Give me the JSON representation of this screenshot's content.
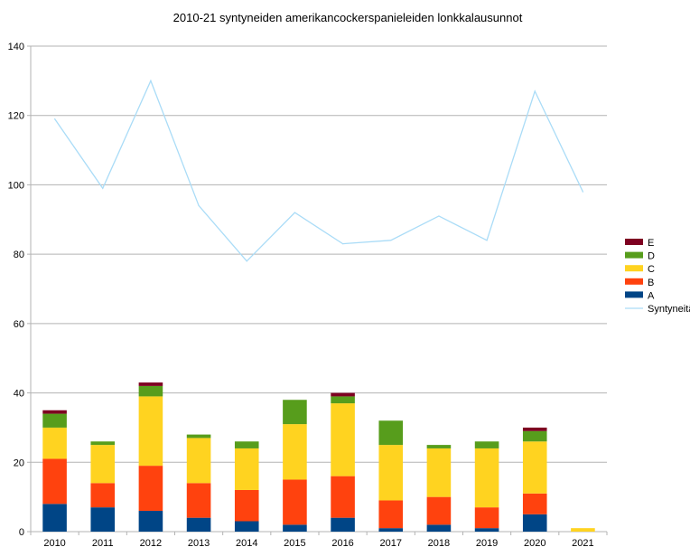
{
  "chart_data": {
    "type": "bar",
    "title": "2010-21 syntyneiden amerikancockerspanieleiden lonkkalausunnot",
    "xlabel": "",
    "ylabel": "",
    "ylim": [
      0,
      140
    ],
    "yticks": [
      0,
      20,
      40,
      60,
      80,
      100,
      120,
      140
    ],
    "grid": true,
    "legend_position": "right",
    "categories": [
      "2010",
      "2011",
      "2012",
      "2013",
      "2014",
      "2015",
      "2016",
      "2017",
      "2018",
      "2019",
      "2020",
      "2021"
    ],
    "stacked_series": [
      {
        "name": "A",
        "color": "#004586",
        "values": [
          8,
          7,
          6,
          4,
          3,
          2,
          4,
          1,
          2,
          1,
          5,
          0
        ]
      },
      {
        "name": "B",
        "color": "#ff420e",
        "values": [
          13,
          7,
          13,
          10,
          9,
          13,
          12,
          8,
          8,
          6,
          6,
          0
        ]
      },
      {
        "name": "C",
        "color": "#ffd320",
        "values": [
          9,
          11,
          20,
          13,
          12,
          16,
          21,
          16,
          14,
          17,
          15,
          1
        ]
      },
      {
        "name": "D",
        "color": "#579d1c",
        "values": [
          4,
          1,
          3,
          1,
          2,
          7,
          2,
          7,
          1,
          2,
          3,
          0
        ]
      },
      {
        "name": "E",
        "color": "#7e0021",
        "values": [
          1,
          0,
          1,
          0,
          0,
          0,
          1,
          0,
          0,
          0,
          1,
          0
        ]
      }
    ],
    "line_series": [
      {
        "name": "Syntyneitä",
        "color": "#aadcf7",
        "values": [
          119,
          99,
          130,
          94,
          78,
          92,
          83,
          84,
          91,
          84,
          127,
          98
        ]
      }
    ],
    "legend_order": [
      "E",
      "D",
      "C",
      "B",
      "A",
      "Syntyneitä"
    ]
  }
}
